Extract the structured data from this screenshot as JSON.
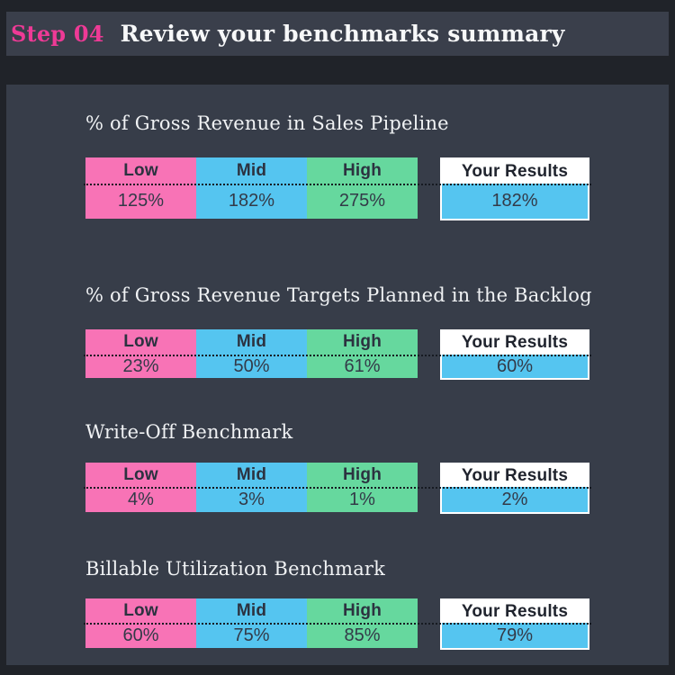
{
  "header": {
    "step": "Step 04",
    "title": "Review your benchmarks summary"
  },
  "columns": [
    "Low",
    "Mid",
    "High"
  ],
  "results_label": "Your Results",
  "sections": [
    {
      "title": "% of Gross Revenue in Sales Pipeline",
      "values": {
        "low": "125%",
        "mid": "182%",
        "high": "275%"
      },
      "your_result": "182%"
    },
    {
      "title": "% of Gross Revenue Targets Planned in the Backlog",
      "values": {
        "low": "23%",
        "mid": "50%",
        "high": "61%"
      },
      "your_result": "60%"
    },
    {
      "title": "Write-Off Benchmark",
      "values": {
        "low": "4%",
        "mid": "3%",
        "high": "1%"
      },
      "your_result": "2%"
    },
    {
      "title": "Billable Utilization Benchmark",
      "values": {
        "low": "60%",
        "mid": "75%",
        "high": "85%"
      },
      "your_result": "79%"
    }
  ],
  "colors": {
    "low": "#f873b6",
    "mid": "#55c5f0",
    "high": "#66d89e",
    "your_result": "#55c5f0",
    "accent_pink": "#ee3a96",
    "panel_bg": "#373d49",
    "bar_bg": "#3a3f4b",
    "outer_bg": "#202329"
  }
}
